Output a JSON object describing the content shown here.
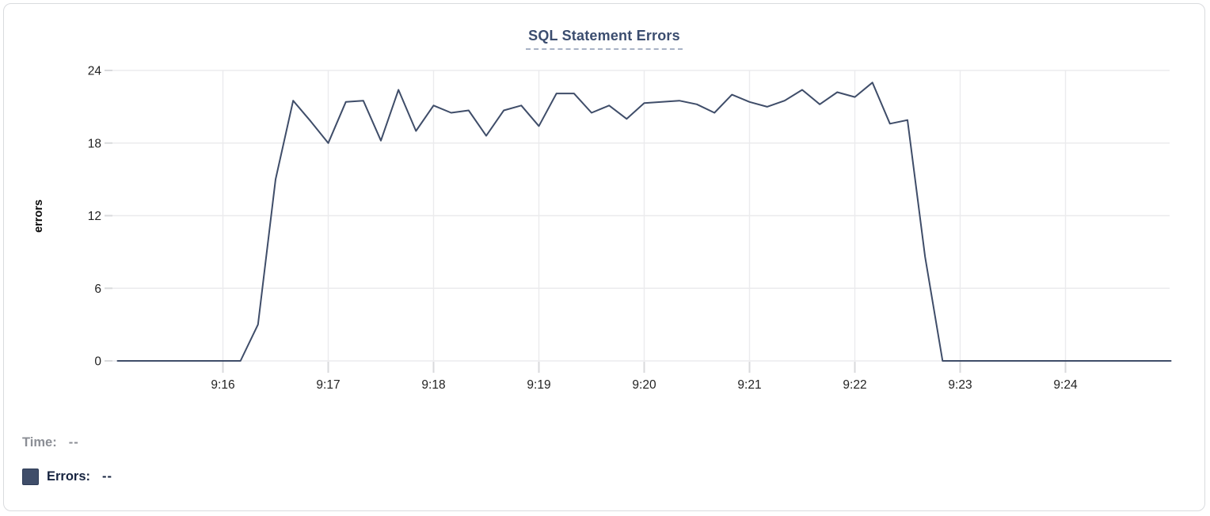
{
  "chart_data": {
    "type": "line",
    "title": "SQL Statement Errors",
    "xlabel": "",
    "ylabel": "errors",
    "ylim": [
      0,
      24
    ],
    "yticks": [
      0,
      6,
      12,
      18,
      24
    ],
    "x_tick_labels": [
      "9:16",
      "9:17",
      "9:18",
      "9:19",
      "9:20",
      "9:21",
      "9:22",
      "9:23",
      "9:24"
    ],
    "grid": true,
    "legend_position": "bottom-left",
    "x": [
      "9:15:00",
      "9:15:10",
      "9:15:20",
      "9:15:30",
      "9:15:40",
      "9:15:50",
      "9:16:00",
      "9:16:10",
      "9:16:20",
      "9:16:30",
      "9:16:40",
      "9:16:50",
      "9:17:00",
      "9:17:10",
      "9:17:20",
      "9:17:30",
      "9:17:40",
      "9:17:50",
      "9:18:00",
      "9:18:10",
      "9:18:20",
      "9:18:30",
      "9:18:40",
      "9:18:50",
      "9:19:00",
      "9:19:10",
      "9:19:20",
      "9:19:30",
      "9:19:40",
      "9:19:50",
      "9:20:00",
      "9:20:10",
      "9:20:20",
      "9:20:30",
      "9:20:40",
      "9:20:50",
      "9:21:00",
      "9:21:10",
      "9:21:20",
      "9:21:30",
      "9:21:40",
      "9:21:50",
      "9:22:00",
      "9:22:10",
      "9:22:20",
      "9:22:30",
      "9:22:40",
      "9:22:50",
      "9:23:00",
      "9:23:10",
      "9:23:20",
      "9:23:30",
      "9:23:40",
      "9:23:50",
      "9:24:00",
      "9:24:10",
      "9:24:20",
      "9:24:30",
      "9:24:40",
      "9:24:50",
      "9:25:00"
    ],
    "series": [
      {
        "name": "Errors",
        "color": "#3f4d69",
        "values": [
          0,
          0,
          0,
          0,
          0,
          0,
          0,
          0,
          3,
          15,
          21.5,
          19.8,
          18,
          21.4,
          21.5,
          18.2,
          22.4,
          19,
          21.1,
          20.5,
          20.7,
          18.6,
          20.7,
          21.1,
          19.4,
          22.1,
          22.1,
          20.5,
          21.1,
          20,
          21.3,
          21.4,
          21.5,
          21.2,
          20.5,
          22,
          21.4,
          21,
          21.5,
          22.4,
          21.2,
          22.2,
          21.8,
          23,
          19.6,
          19.9,
          8.6,
          0,
          0,
          0,
          0,
          0,
          0,
          0,
          0,
          0,
          0,
          0,
          0,
          0,
          0
        ]
      }
    ]
  },
  "legend": {
    "time_label": "Time:",
    "time_value": "--",
    "errors_label": "Errors:",
    "errors_value": "--",
    "swatch_color": "#3f4d69"
  },
  "colors": {
    "background": "#ffffff",
    "card_border": "#d9dbde",
    "grid": "#ebebed",
    "tick": "#d9dadc",
    "tick_label": "#222222",
    "axis_label": "#0b0b0b",
    "title": "#3b4d6f",
    "title_underline": "#a8b2c5",
    "line": "#3f4d69",
    "legend_gray": "#8b8e95",
    "legend_navy": "#172440"
  }
}
